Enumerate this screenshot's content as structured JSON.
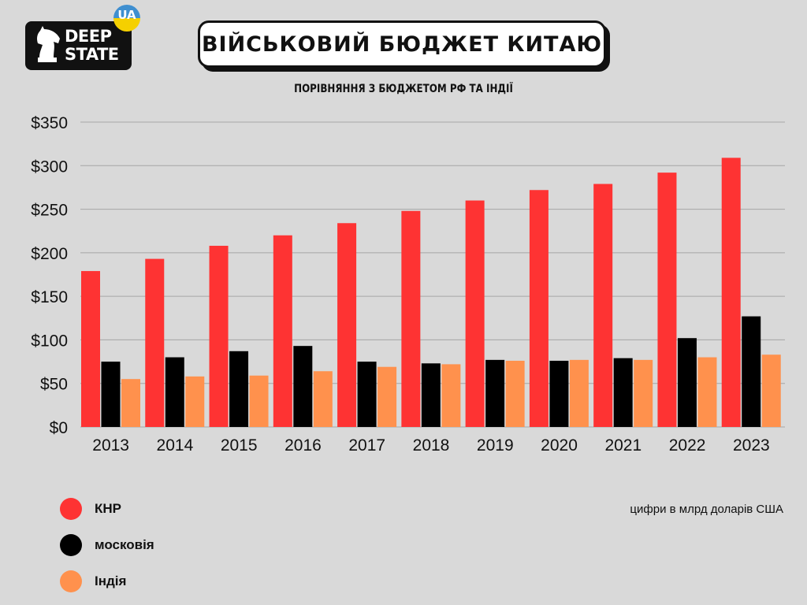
{
  "header": {
    "logo_text_line1": "DEEP",
    "logo_text_line2": "STATE",
    "logo_badge": "UA",
    "title": "ВІЙСЬКОВИЙ БЮДЖЕТ КИТАЮ",
    "subtitle": "ПОРІВНЯННЯ З БЮДЖЕТОМ РФ ТА ІНДІЇ"
  },
  "note": "цифри в млрд доларів США",
  "colors": {
    "background": "#d9d9d9",
    "china": "#fe3333",
    "russia": "#000000",
    "india": "#ff914d",
    "badge_blue": "#3f8fd0",
    "badge_yellow": "#f5d000"
  },
  "chart_data": {
    "type": "bar",
    "title": "ВІЙСЬКОВИЙ БЮДЖЕТ КИТАЮ",
    "subtitle": "ПОРІВНЯННЯ З БЮДЖЕТОМ РФ ТА ІНДІЇ",
    "xlabel": "",
    "ylabel": "",
    "categories": [
      "2013",
      "2014",
      "2015",
      "2016",
      "2017",
      "2018",
      "2019",
      "2020",
      "2021",
      "2022",
      "2023"
    ],
    "series": [
      {
        "name": "КНР",
        "color": "#fe3333",
        "values": [
          179,
          193,
          208,
          220,
          234,
          248,
          260,
          272,
          279,
          292,
          309
        ]
      },
      {
        "name": "московія",
        "color": "#000000",
        "values": [
          75,
          80,
          87,
          93,
          75,
          73,
          77,
          76,
          79,
          102,
          127
        ]
      },
      {
        "name": "Індія",
        "color": "#ff914d",
        "values": [
          55,
          58,
          59,
          64,
          69,
          72,
          76,
          77,
          77,
          80,
          83
        ]
      }
    ],
    "yticks": [
      0,
      50,
      100,
      150,
      200,
      250,
      300,
      350
    ],
    "ytick_labels": [
      "$0",
      "$50",
      "$100",
      "$150",
      "$200",
      "$250",
      "$300",
      "$350"
    ],
    "ylim": [
      0,
      350
    ],
    "grid": true,
    "legend_position": "bottom-left"
  }
}
